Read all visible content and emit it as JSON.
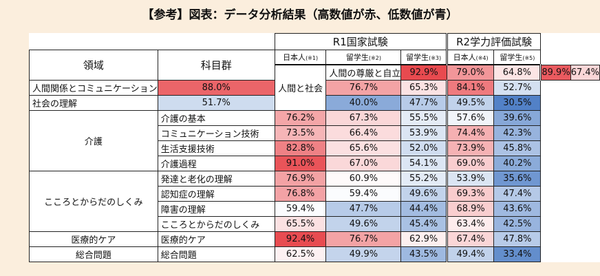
{
  "title": "【参考】図表：データ分析結果（高数値が赤、低数値が青）",
  "chart_data": {
    "type": "table",
    "headers": {
      "domain": "領域",
      "subject": "科目群",
      "groups": [
        {
          "label": "R1国家試験",
          "span": 3
        },
        {
          "label": "R2学力評価試験",
          "span": 2
        }
      ],
      "columns": [
        {
          "label": "日本人",
          "note": "(※1)"
        },
        {
          "label": "留学生",
          "note": "(※2)"
        },
        {
          "label": "留学生",
          "note": "(※3)"
        },
        {
          "label": "日本人",
          "note": "(※4)"
        },
        {
          "label": "留学生",
          "note": "(※5)"
        }
      ]
    },
    "domains": [
      {
        "name": "人間と社会",
        "rows": [
          {
            "subject": "人間の尊厳と自立",
            "values": [
              92.9,
              79.0,
              64.8,
              89.9,
              67.4
            ]
          },
          {
            "subject": "人間関係とコミュニケーション",
            "values": [
              88.0,
              76.7,
              65.3,
              84.1,
              52.7
            ]
          },
          {
            "subject": "社会の理解",
            "values": [
              51.7,
              40.0,
              47.7,
              49.5,
              30.5
            ]
          }
        ]
      },
      {
        "name": "介護",
        "rows": [
          {
            "subject": "介護の基本",
            "values": [
              76.2,
              67.3,
              55.5,
              57.6,
              39.6
            ]
          },
          {
            "subject": "コミュニケーション技術",
            "values": [
              73.5,
              66.4,
              53.9,
              74.4,
              42.3
            ]
          },
          {
            "subject": "生活支援技術",
            "values": [
              82.8,
              65.6,
              52.0,
              73.9,
              45.8
            ]
          },
          {
            "subject": "介護過程",
            "values": [
              91.0,
              67.0,
              54.1,
              69.0,
              40.2
            ]
          }
        ]
      },
      {
        "name": "こころとからだのしくみ",
        "rows": [
          {
            "subject": "発達と老化の理解",
            "values": [
              76.9,
              60.9,
              55.2,
              53.9,
              35.6
            ]
          },
          {
            "subject": "認知症の理解",
            "values": [
              76.8,
              59.4,
              49.6,
              69.3,
              47.4
            ]
          },
          {
            "subject": "障害の理解",
            "values": [
              59.4,
              47.7,
              44.4,
              68.9,
              43.6
            ]
          },
          {
            "subject": "こころとからだのしくみ",
            "values": [
              65.5,
              49.6,
              45.4,
              63.4,
              42.5
            ]
          }
        ]
      },
      {
        "name": "医療的ケア",
        "rows": [
          {
            "subject": "医療的ケア",
            "values": [
              92.4,
              76.7,
              62.9,
              67.4,
              47.8
            ]
          }
        ]
      },
      {
        "name": "総合問題",
        "rows": [
          {
            "subject": "総合問題",
            "values": [
              62.5,
              49.9,
              43.5,
              49.4,
              33.4
            ]
          }
        ]
      }
    ],
    "value_suffix": "%",
    "colors": {
      "high": "#e8494e",
      "mid": "#ffffff",
      "low": "#4f7fc6"
    },
    "color_scale": {
      "low": 30,
      "mid": 60,
      "high": 93
    }
  }
}
